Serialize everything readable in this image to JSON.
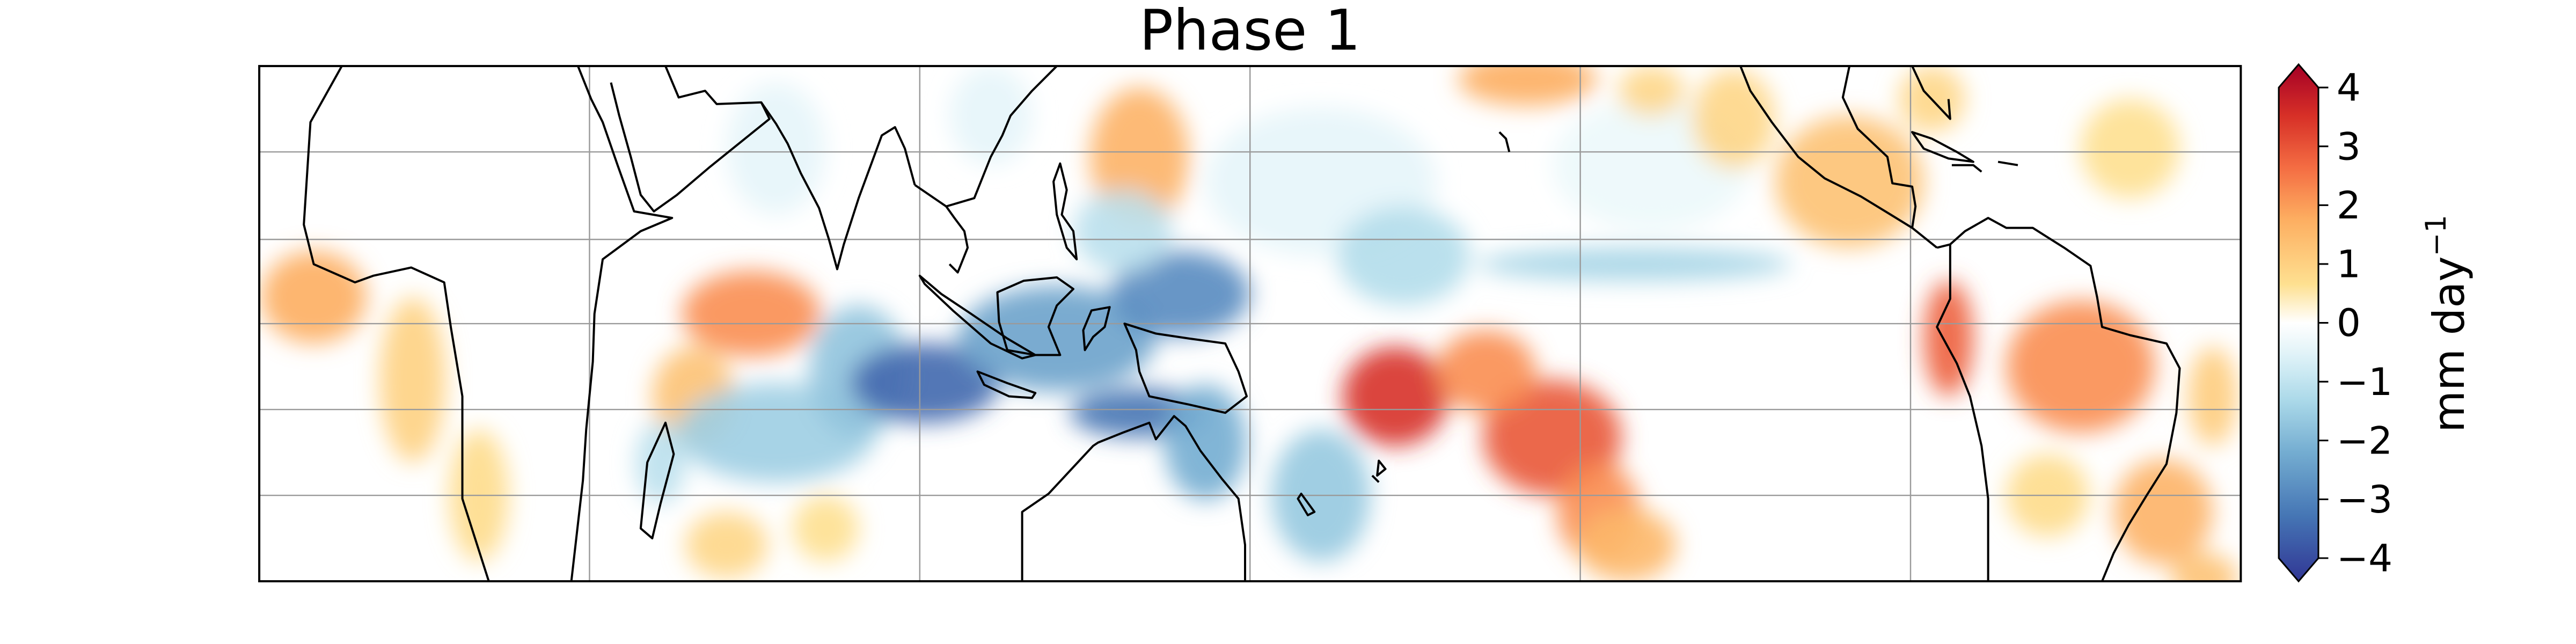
{
  "chart_data": {
    "type": "heatmap",
    "subtype": "filled-contour map",
    "title": "Phase 1",
    "colorbar": {
      "label": "mm day",
      "label_superscript": "−1",
      "ticks": [
        4,
        3,
        2,
        1,
        0,
        -1,
        -2,
        -3,
        -4
      ],
      "tick_labels": [
        "4",
        "3",
        "2",
        "1",
        "0",
        "−1",
        "−2",
        "−3",
        "−4"
      ],
      "range": [
        -4,
        4
      ],
      "extend": "both",
      "colormap": "RdYlBu_r"
    },
    "grid": true,
    "coastlines": true,
    "colors": {
      "max": "#a50026",
      "zero": "#ffffff",
      "min": "#313695"
    }
  }
}
